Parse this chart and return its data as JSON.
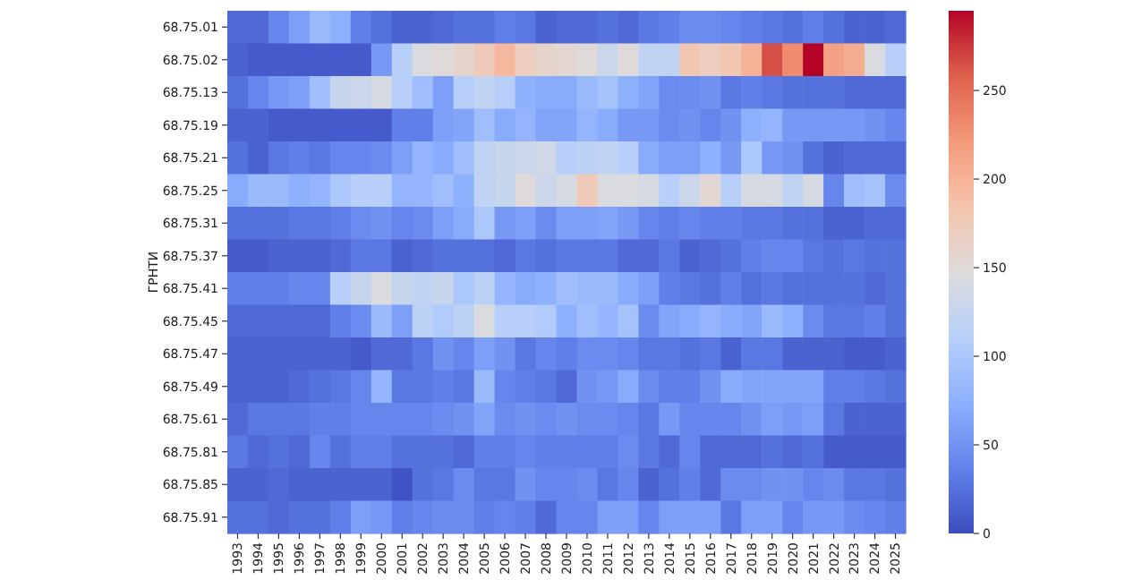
{
  "chart_data": {
    "type": "heatmap",
    "ylabel": "ГРНТИ",
    "categories": [
      "1993",
      "1994",
      "1995",
      "1996",
      "1997",
      "1998",
      "1999",
      "2000",
      "2001",
      "2002",
      "2003",
      "2004",
      "2005",
      "2006",
      "2007",
      "2008",
      "2009",
      "2010",
      "2011",
      "2012",
      "2013",
      "2014",
      "2015",
      "2016",
      "2017",
      "2018",
      "2019",
      "2020",
      "2021",
      "2022",
      "2023",
      "2024",
      "2025"
    ],
    "y_categories": [
      "68.75.01",
      "68.75.02",
      "68.75.13",
      "68.75.19",
      "68.75.21",
      "68.75.25",
      "68.75.31",
      "68.75.37",
      "68.75.41",
      "68.75.45",
      "68.75.47",
      "68.75.49",
      "68.75.61",
      "68.75.81",
      "68.75.85",
      "68.75.91"
    ],
    "cells": [
      [
        20,
        20,
        40,
        60,
        85,
        75,
        35,
        25,
        15,
        15,
        20,
        25,
        25,
        35,
        30,
        15,
        20,
        20,
        25,
        20,
        30,
        35,
        45,
        45,
        40,
        35,
        30,
        25,
        35,
        25,
        15,
        15,
        20
      ],
      [
        15,
        10,
        10,
        10,
        10,
        10,
        10,
        55,
        110,
        145,
        150,
        160,
        175,
        195,
        170,
        160,
        155,
        150,
        130,
        150,
        120,
        120,
        180,
        170,
        180,
        200,
        265,
        230,
        295,
        215,
        205,
        145,
        110
      ],
      [
        25,
        40,
        55,
        60,
        90,
        125,
        130,
        140,
        110,
        90,
        60,
        110,
        120,
        110,
        75,
        70,
        70,
        85,
        95,
        75,
        65,
        45,
        45,
        50,
        30,
        35,
        30,
        25,
        25,
        25,
        20,
        20,
        20
      ],
      [
        15,
        15,
        10,
        10,
        10,
        10,
        10,
        10,
        35,
        35,
        60,
        65,
        90,
        70,
        80,
        65,
        65,
        80,
        70,
        55,
        55,
        45,
        50,
        40,
        50,
        75,
        80,
        55,
        55,
        55,
        55,
        50,
        40
      ],
      [
        25,
        15,
        30,
        35,
        30,
        40,
        40,
        45,
        60,
        80,
        70,
        90,
        120,
        125,
        130,
        135,
        110,
        115,
        120,
        110,
        70,
        60,
        60,
        75,
        55,
        100,
        55,
        50,
        25,
        15,
        20,
        20,
        20
      ],
      [
        70,
        85,
        85,
        75,
        80,
        100,
        110,
        110,
        80,
        80,
        90,
        75,
        120,
        125,
        150,
        130,
        140,
        175,
        145,
        145,
        140,
        110,
        130,
        155,
        110,
        140,
        140,
        120,
        140,
        40,
        90,
        95,
        45
      ],
      [
        25,
        25,
        25,
        30,
        30,
        35,
        45,
        50,
        40,
        45,
        60,
        70,
        100,
        55,
        60,
        45,
        60,
        60,
        65,
        55,
        40,
        35,
        40,
        35,
        35,
        30,
        30,
        25,
        25,
        15,
        15,
        20,
        20
      ],
      [
        10,
        10,
        15,
        15,
        15,
        20,
        30,
        30,
        15,
        20,
        25,
        25,
        25,
        20,
        30,
        25,
        30,
        30,
        30,
        20,
        20,
        30,
        15,
        20,
        25,
        35,
        40,
        40,
        30,
        25,
        30,
        25,
        25
      ],
      [
        35,
        35,
        35,
        40,
        40,
        110,
        125,
        145,
        125,
        120,
        125,
        100,
        115,
        80,
        70,
        75,
        90,
        85,
        85,
        70,
        60,
        35,
        30,
        25,
        35,
        25,
        30,
        25,
        25,
        25,
        25,
        20,
        25
      ],
      [
        20,
        20,
        20,
        20,
        20,
        35,
        45,
        85,
        60,
        115,
        105,
        115,
        145,
        110,
        110,
        105,
        75,
        90,
        80,
        95,
        45,
        65,
        70,
        80,
        70,
        65,
        85,
        75,
        45,
        30,
        30,
        35,
        25
      ],
      [
        15,
        15,
        15,
        15,
        15,
        15,
        10,
        20,
        20,
        30,
        50,
        40,
        60,
        50,
        30,
        40,
        35,
        45,
        45,
        40,
        30,
        30,
        25,
        30,
        15,
        30,
        30,
        15,
        15,
        15,
        10,
        10,
        15
      ],
      [
        15,
        15,
        15,
        20,
        25,
        30,
        40,
        80,
        30,
        30,
        35,
        30,
        85,
        40,
        35,
        30,
        20,
        50,
        55,
        70,
        45,
        35,
        35,
        50,
        70,
        65,
        65,
        65,
        65,
        35,
        35,
        30,
        25
      ],
      [
        20,
        30,
        30,
        30,
        35,
        35,
        40,
        40,
        40,
        40,
        45,
        50,
        65,
        45,
        50,
        45,
        50,
        45,
        45,
        40,
        30,
        55,
        40,
        40,
        40,
        50,
        60,
        55,
        60,
        30,
        15,
        15,
        15
      ],
      [
        30,
        20,
        25,
        20,
        40,
        25,
        35,
        35,
        25,
        25,
        25,
        20,
        35,
        35,
        40,
        35,
        35,
        35,
        35,
        45,
        30,
        20,
        40,
        20,
        20,
        20,
        25,
        20,
        25,
        10,
        10,
        10,
        10
      ],
      [
        15,
        15,
        20,
        15,
        15,
        15,
        15,
        15,
        5,
        25,
        30,
        45,
        30,
        30,
        50,
        40,
        40,
        45,
        30,
        40,
        15,
        25,
        35,
        20,
        45,
        45,
        50,
        50,
        40,
        45,
        30,
        30,
        25
      ],
      [
        25,
        25,
        20,
        25,
        25,
        35,
        60,
        55,
        35,
        40,
        45,
        45,
        35,
        40,
        35,
        20,
        40,
        40,
        60,
        60,
        40,
        60,
        60,
        60,
        30,
        60,
        60,
        40,
        55,
        55,
        45,
        40,
        35
      ]
    ],
    "clim": [
      0,
      295
    ],
    "cticks": [
      0,
      50,
      100,
      150,
      200,
      250
    ]
  }
}
